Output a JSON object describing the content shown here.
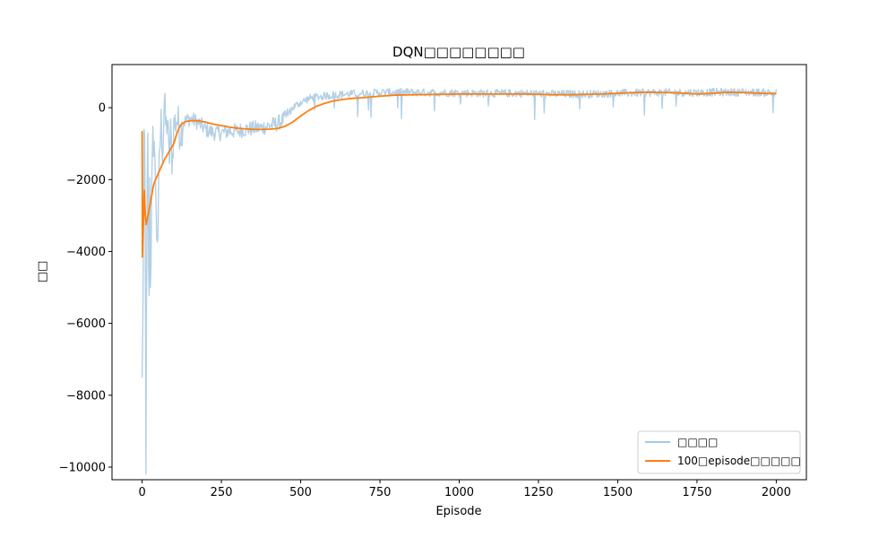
{
  "chart_data": {
    "type": "line",
    "title": "DQN□□□□□□□□",
    "xlabel": "Episode",
    "ylabel": "□□",
    "xlim": [
      -95,
      2095
    ],
    "ylim": [
      -10350,
      1200
    ],
    "xticks": [
      0,
      250,
      500,
      750,
      1000,
      1250,
      1500,
      1750,
      2000
    ],
    "yticks": [
      -10000,
      -8000,
      -6000,
      -4000,
      -2000,
      0
    ],
    "xtick_labels": [
      "0",
      "250",
      "500",
      "750",
      "1000",
      "1250",
      "1500",
      "1750",
      "2000"
    ],
    "ytick_labels": [
      "−10000",
      "−8000",
      "−6000",
      "−4000",
      "−2000",
      "0"
    ],
    "legend_position": "lower-right",
    "grid": false,
    "series": [
      {
        "name": "□□□□",
        "color": "#a6c8e2",
        "style": "noisy",
        "values": [
          [
            0,
            -7700
          ],
          [
            3,
            -5200
          ],
          [
            6,
            -1200
          ],
          [
            9,
            -900
          ],
          [
            12,
            -9800
          ],
          [
            15,
            -3000
          ],
          [
            18,
            -1100
          ],
          [
            21,
            -6400
          ],
          [
            24,
            -2300
          ],
          [
            27,
            -5800
          ],
          [
            30,
            -2000
          ],
          [
            33,
            -400
          ],
          [
            36,
            -1800
          ],
          [
            40,
            -900
          ],
          [
            45,
            -3500
          ],
          [
            50,
            -3450
          ],
          [
            55,
            -1200
          ],
          [
            60,
            -400
          ],
          [
            65,
            -1300
          ],
          [
            70,
            200
          ],
          [
            75,
            -600
          ],
          [
            80,
            -300
          ],
          [
            85,
            -1500
          ],
          [
            90,
            -700
          ],
          [
            95,
            -1600
          ],
          [
            100,
            -500
          ],
          [
            110,
            -300
          ],
          [
            120,
            -700
          ],
          [
            130,
            -400
          ],
          [
            150,
            -300
          ],
          [
            175,
            -400
          ],
          [
            200,
            -600
          ],
          [
            225,
            -700
          ],
          [
            250,
            -700
          ],
          [
            275,
            -650
          ],
          [
            300,
            -650
          ],
          [
            325,
            -600
          ],
          [
            350,
            -580
          ],
          [
            375,
            -560
          ],
          [
            400,
            -500
          ],
          [
            425,
            -450
          ],
          [
            450,
            -300
          ],
          [
            475,
            0
          ],
          [
            500,
            150
          ],
          [
            525,
            250
          ],
          [
            550,
            300
          ],
          [
            600,
            350
          ],
          [
            650,
            380
          ],
          [
            700,
            400
          ],
          [
            750,
            420
          ],
          [
            800,
            430
          ],
          [
            850,
            430
          ],
          [
            900,
            420
          ],
          [
            950,
            420
          ],
          [
            1000,
            410
          ],
          [
            1100,
            400
          ],
          [
            1200,
            400
          ],
          [
            1300,
            380
          ],
          [
            1400,
            380
          ],
          [
            1500,
            400
          ],
          [
            1600,
            420
          ],
          [
            1700,
            420
          ],
          [
            1750,
            420
          ],
          [
            1800,
            430
          ],
          [
            1900,
            430
          ],
          [
            2000,
            420
          ]
        ]
      },
      {
        "name": "100□episode□□□□□",
        "color": "#ff7f0e",
        "style": "smooth",
        "values": [
          [
            0,
            -650
          ],
          [
            1,
            -4150
          ],
          [
            3,
            -3500
          ],
          [
            5,
            -2800
          ],
          [
            7,
            -2300
          ],
          [
            10,
            -3000
          ],
          [
            13,
            -3250
          ],
          [
            16,
            -3100
          ],
          [
            20,
            -2950
          ],
          [
            25,
            -2700
          ],
          [
            30,
            -2450
          ],
          [
            35,
            -2200
          ],
          [
            40,
            -2050
          ],
          [
            50,
            -1850
          ],
          [
            60,
            -1650
          ],
          [
            70,
            -1450
          ],
          [
            80,
            -1300
          ],
          [
            90,
            -1150
          ],
          [
            100,
            -1000
          ],
          [
            110,
            -700
          ],
          [
            120,
            -500
          ],
          [
            130,
            -420
          ],
          [
            140,
            -380
          ],
          [
            160,
            -360
          ],
          [
            180,
            -370
          ],
          [
            200,
            -400
          ],
          [
            220,
            -450
          ],
          [
            250,
            -500
          ],
          [
            275,
            -540
          ],
          [
            300,
            -570
          ],
          [
            325,
            -590
          ],
          [
            350,
            -600
          ],
          [
            375,
            -605
          ],
          [
            400,
            -600
          ],
          [
            425,
            -580
          ],
          [
            450,
            -520
          ],
          [
            475,
            -400
          ],
          [
            500,
            -230
          ],
          [
            525,
            -80
          ],
          [
            550,
            40
          ],
          [
            575,
            120
          ],
          [
            600,
            180
          ],
          [
            625,
            220
          ],
          [
            650,
            250
          ],
          [
            700,
            280
          ],
          [
            750,
            320
          ],
          [
            800,
            350
          ],
          [
            850,
            360
          ],
          [
            900,
            365
          ],
          [
            950,
            370
          ],
          [
            1000,
            380
          ],
          [
            1050,
            380
          ],
          [
            1100,
            380
          ],
          [
            1150,
            380
          ],
          [
            1200,
            380
          ],
          [
            1250,
            370
          ],
          [
            1300,
            360
          ],
          [
            1350,
            360
          ],
          [
            1400,
            370
          ],
          [
            1450,
            380
          ],
          [
            1500,
            400
          ],
          [
            1550,
            420
          ],
          [
            1600,
            430
          ],
          [
            1650,
            420
          ],
          [
            1700,
            410
          ],
          [
            1750,
            380
          ],
          [
            1800,
            400
          ],
          [
            1850,
            430
          ],
          [
            1900,
            420
          ],
          [
            1950,
            400
          ],
          [
            2000,
            390
          ]
        ]
      }
    ]
  }
}
